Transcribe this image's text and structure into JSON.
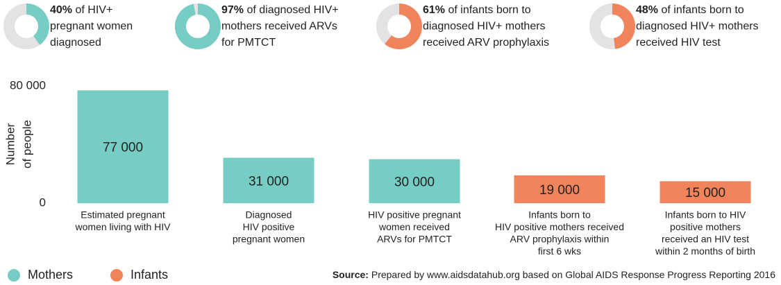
{
  "chart_data": [
    {
      "type": "donut",
      "values": [
        40,
        97,
        61,
        48
      ],
      "value_labels": [
        "40%",
        "97%",
        "61%",
        "48%"
      ],
      "captions": [
        [
          "of HIV+",
          "pregnant women",
          "diagnosed"
        ],
        [
          "of diagnosed HIV+",
          "mothers received ARVs",
          "for PMTCT"
        ],
        [
          "of infants born to",
          "diagnosed HIV+ mothers",
          "received ARV prophylaxis"
        ],
        [
          "of infants born to",
          "diagnosed HIV+ mothers",
          "received HIV test"
        ]
      ],
      "colors": [
        "#76cdc3",
        "#76cdc3",
        "#f2845c",
        "#f2845c"
      ],
      "remainder_color": "#e3e3e3"
    },
    {
      "type": "bar",
      "categories": [
        [
          "Estimated pregnant",
          "women living with HIV"
        ],
        [
          "Diagnosed",
          "HIV positive",
          "pregnant women"
        ],
        [
          "HIV positive pregnant",
          "women received",
          "ARVs for PMTCT"
        ],
        [
          "Infants born to",
          "HIV positive mothers received",
          "ARV prophylaxis within",
          "first 6 wks"
        ],
        [
          "Infants born to HIV",
          "positive mothers",
          "received an HIV test",
          "within 2 months of birth"
        ]
      ],
      "values": [
        77000,
        31000,
        30000,
        19000,
        15000
      ],
      "value_labels": [
        "77 000",
        "31 000",
        "30 000",
        "19 000",
        "15 000"
      ],
      "colors": [
        "#76cdc3",
        "#76cdc3",
        "#76cdc3",
        "#f2845c",
        "#f2845c"
      ],
      "y_label": [
        "Number",
        "of people"
      ],
      "ylim": [
        0,
        80000
      ],
      "yticks": [
        0,
        {
          "value": 80000,
          "label": "80 000"
        }
      ],
      "legend": [
        {
          "name": "Mothers",
          "color": "#76cdc3"
        },
        {
          "name": "Infants",
          "color": "#f2845c"
        }
      ],
      "source_label": "Source:",
      "source": "Prepared by www.aidsdatahub.org based on Global AIDS Response Progress Reporting 2016"
    }
  ]
}
